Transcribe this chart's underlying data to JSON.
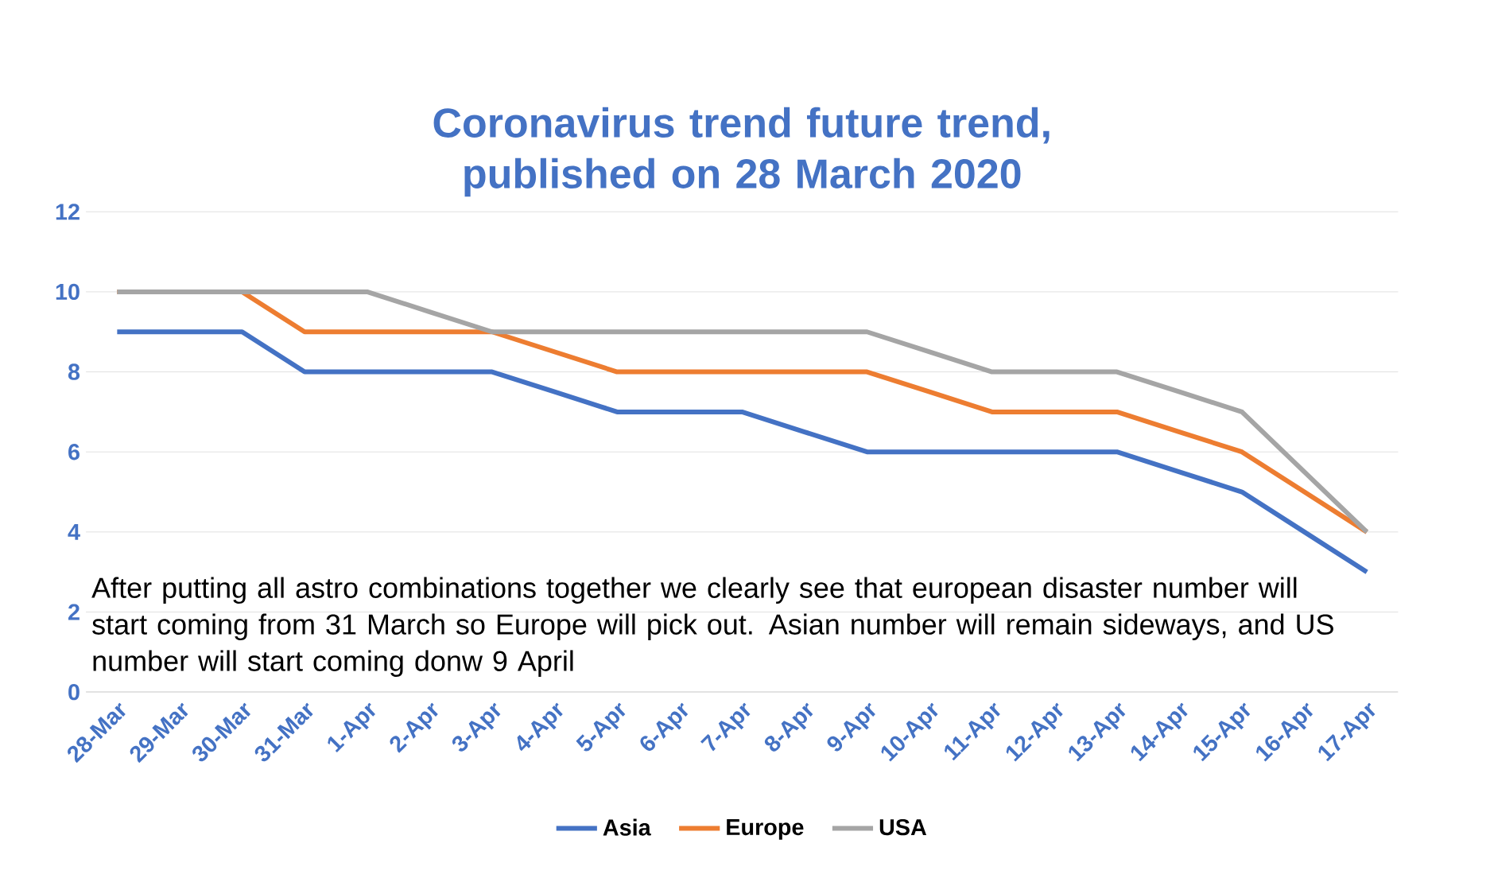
{
  "chart_data": {
    "type": "line",
    "title": "Coronavirus trend future trend, published on 28 March 2020",
    "categories": [
      "28-Mar",
      "29-Mar",
      "30-Mar",
      "31-Mar",
      "1-Apr",
      "2-Apr",
      "3-Apr",
      "4-Apr",
      "5-Apr",
      "6-Apr",
      "7-Apr",
      "8-Apr",
      "9-Apr",
      "10-Apr",
      "11-Apr",
      "12-Apr",
      "13-Apr",
      "14-Apr",
      "15-Apr",
      "16-Apr",
      "17-Apr"
    ],
    "series": [
      {
        "name": "Asia",
        "color": "#4472c4",
        "values": [
          9,
          9,
          9,
          8,
          8,
          8,
          8,
          7.5,
          7,
          7,
          7,
          6.5,
          6,
          6,
          6,
          6,
          6,
          5.5,
          5,
          4,
          3
        ]
      },
      {
        "name": "Europe",
        "color": "#ed7d31",
        "values": [
          10,
          null,
          10,
          9,
          9,
          9,
          9,
          8.5,
          8,
          8,
          8,
          8,
          8,
          7.5,
          7,
          7,
          7,
          6.5,
          6,
          5,
          4
        ]
      },
      {
        "name": "USA",
        "color": "#a5a5a5",
        "values": [
          10,
          10,
          10,
          10,
          10,
          9.5,
          9,
          9,
          9,
          9,
          9,
          9,
          9,
          8.5,
          8,
          8,
          8,
          7.5,
          7,
          5.5,
          4
        ]
      }
    ],
    "ylim": [
      0,
      12
    ],
    "yticks": [
      0,
      2,
      4,
      6,
      8,
      10,
      12
    ],
    "grid": "y",
    "legend": "bottom",
    "marker": "none",
    "line_style": "solid",
    "annotations": [
      "After putting all astro combinations together we clearly see that european disaster number will start coming from 31 March so Europe will pick out. Asian number will remain sideways, and US number will start coming donw 9 April"
    ]
  }
}
